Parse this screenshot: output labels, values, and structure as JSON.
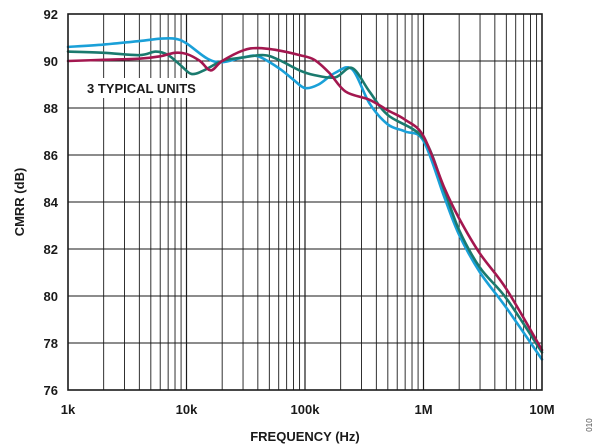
{
  "chart_data": {
    "type": "line",
    "title": "",
    "xlabel": "FREQUENCY (Hz)",
    "ylabel": "CMRR (dB)",
    "xscale": "log",
    "xlim": [
      1000,
      10000000
    ],
    "ylim": [
      76,
      92
    ],
    "x_ticks": [
      1000,
      10000,
      100000,
      1000000,
      10000000
    ],
    "x_tick_labels": [
      "1k",
      "10k",
      "100k",
      "1M",
      "10M"
    ],
    "y_ticks": [
      76,
      78,
      80,
      82,
      84,
      86,
      88,
      90,
      92
    ],
    "y_tick_labels": [
      "76",
      "78",
      "80",
      "82",
      "84",
      "86",
      "88",
      "90",
      "92"
    ],
    "grid": true,
    "annotation": "3 TYPICAL UNITS",
    "figure_id": "010",
    "series": [
      {
        "color": "#1aa0d8",
        "points": [
          [
            1000,
            90.6
          ],
          [
            2000,
            90.7
          ],
          [
            4000,
            90.85
          ],
          [
            6000,
            90.95
          ],
          [
            8000,
            90.95
          ],
          [
            10000,
            90.75
          ],
          [
            15000,
            90.1
          ],
          [
            20000,
            89.95
          ],
          [
            30000,
            90.15
          ],
          [
            40000,
            90.2
          ],
          [
            60000,
            89.7
          ],
          [
            80000,
            89.2
          ],
          [
            100000,
            88.85
          ],
          [
            130000,
            89.0
          ],
          [
            180000,
            89.5
          ],
          [
            250000,
            89.65
          ],
          [
            350000,
            88.2
          ],
          [
            500000,
            87.3
          ],
          [
            700000,
            87.0
          ],
          [
            1000000,
            86.6
          ],
          [
            1500000,
            84.2
          ],
          [
            2000000,
            82.6
          ],
          [
            3000000,
            81.0
          ],
          [
            5000000,
            79.5
          ],
          [
            10000000,
            77.3
          ]
        ]
      },
      {
        "color": "#1a7a6e",
        "points": [
          [
            1000,
            90.4
          ],
          [
            2000,
            90.35
          ],
          [
            4000,
            90.25
          ],
          [
            5500,
            90.4
          ],
          [
            7000,
            90.25
          ],
          [
            9000,
            89.8
          ],
          [
            11000,
            89.45
          ],
          [
            14000,
            89.6
          ],
          [
            20000,
            90.0
          ],
          [
            30000,
            90.15
          ],
          [
            45000,
            90.25
          ],
          [
            60000,
            90.05
          ],
          [
            90000,
            89.6
          ],
          [
            120000,
            89.4
          ],
          [
            180000,
            89.3
          ],
          [
            250000,
            89.7
          ],
          [
            350000,
            88.7
          ],
          [
            500000,
            87.7
          ],
          [
            1000000,
            86.7
          ],
          [
            1500000,
            84.5
          ],
          [
            2000000,
            82.8
          ],
          [
            3000000,
            81.2
          ],
          [
            5000000,
            79.9
          ],
          [
            10000000,
            77.6
          ]
        ]
      },
      {
        "color": "#a3174f",
        "points": [
          [
            1000,
            90.0
          ],
          [
            2000,
            90.05
          ],
          [
            4000,
            90.1
          ],
          [
            6000,
            90.2
          ],
          [
            8000,
            90.35
          ],
          [
            10000,
            90.3
          ],
          [
            13000,
            90.0
          ],
          [
            16000,
            89.6
          ],
          [
            20000,
            90.0
          ],
          [
            30000,
            90.45
          ],
          [
            40000,
            90.55
          ],
          [
            60000,
            90.45
          ],
          [
            90000,
            90.25
          ],
          [
            120000,
            90.05
          ],
          [
            160000,
            89.5
          ],
          [
            220000,
            88.7
          ],
          [
            350000,
            88.35
          ],
          [
            500000,
            87.9
          ],
          [
            700000,
            87.5
          ],
          [
            1000000,
            86.8
          ],
          [
            1500000,
            84.6
          ],
          [
            2000000,
            83.3
          ],
          [
            3000000,
            81.8
          ],
          [
            5000000,
            80.3
          ],
          [
            10000000,
            77.7
          ]
        ]
      }
    ]
  }
}
